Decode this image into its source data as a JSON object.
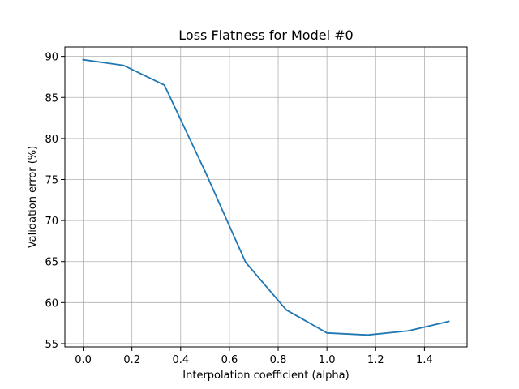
{
  "chart_data": {
    "type": "line",
    "title": "Loss Flatness for Model #0",
    "xlabel": "Interpolation coefficient (alpha)",
    "ylabel": "Validation error (%)",
    "xlim": [
      -0.075,
      1.575
    ],
    "ylim": [
      54.6,
      91.15
    ],
    "xticks": [
      0.0,
      0.2,
      0.4,
      0.6,
      0.8,
      1.0,
      1.2,
      1.4
    ],
    "xtick_labels": [
      "0.0",
      "0.2",
      "0.4",
      "0.6",
      "0.8",
      "1.0",
      "1.2",
      "1.4"
    ],
    "yticks": [
      55,
      60,
      65,
      70,
      75,
      80,
      85,
      90
    ],
    "ytick_labels": [
      "55",
      "60",
      "65",
      "70",
      "75",
      "80",
      "85",
      "90"
    ],
    "grid": true,
    "series": [
      {
        "color": "#1f77b4",
        "x": [
          0.0,
          0.1667,
          0.3333,
          0.5,
          0.6667,
          0.8333,
          1.0,
          1.1667,
          1.3333,
          1.5
        ],
        "y": [
          89.6,
          88.9,
          86.5,
          76.0,
          64.9,
          59.1,
          56.3,
          56.05,
          56.55,
          57.7
        ]
      }
    ]
  }
}
